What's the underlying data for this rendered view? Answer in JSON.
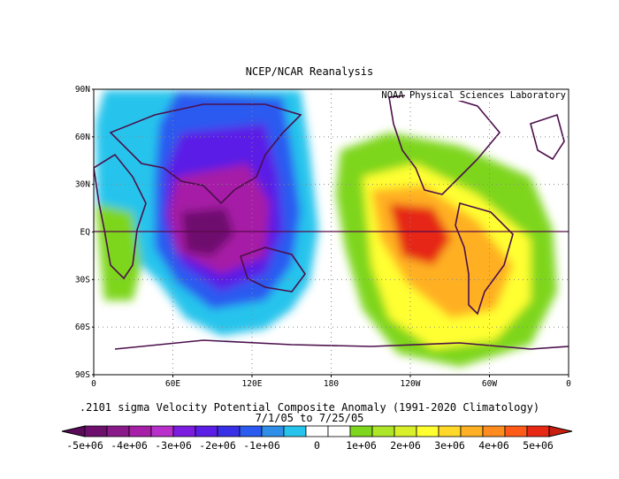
{
  "header": {
    "title": "NCEP/NCAR Reanalysis",
    "credit": "NOAA Physical Sciences Laboratory"
  },
  "map": {
    "projection": "cylindrical equidistant",
    "center_longitude": 180,
    "lat_labels": [
      "90N",
      "60N",
      "30N",
      "EQ",
      "30S",
      "60S",
      "90S"
    ],
    "lon_labels": [
      "0",
      "60E",
      "120E",
      "180",
      "120W",
      "60W",
      "0"
    ],
    "features": [
      {
        "name": "negative-anomaly-center",
        "lon": 80,
        "lat": 0,
        "value": "-5e+06"
      },
      {
        "name": "positive-anomaly-center",
        "lon": 240,
        "lat": 0,
        "value": "5e+06"
      }
    ]
  },
  "caption": {
    "line1": ".2101 sigma Velocity Potential  Composite Anomaly (1991-2020 Climatology)",
    "line2": "7/1/05  to 7/25/05"
  },
  "colorbar": {
    "labels": [
      "-5e+06",
      "-4e+06",
      "-3e+06",
      "-2e+06",
      "-1e+06",
      "0",
      "1e+06",
      "2e+06",
      "3e+06",
      "4e+06",
      "5e+06"
    ],
    "colors": [
      "#6e0f6e",
      "#8a1a8a",
      "#a61fa6",
      "#b92fcc",
      "#7c1ce0",
      "#5a1ee6",
      "#3830e6",
      "#2a5af0",
      "#2e8ee8",
      "#26c4ec",
      "#ffffff",
      "#ffffff",
      "#7ed61e",
      "#aee62a",
      "#d8f02a",
      "#ffff32",
      "#ffd82a",
      "#ffb024",
      "#ff8c1e",
      "#ff5a18",
      "#e62814"
    ],
    "low_arrow_color": "#5a0a5a",
    "high_arrow_color": "#c81e10"
  }
}
